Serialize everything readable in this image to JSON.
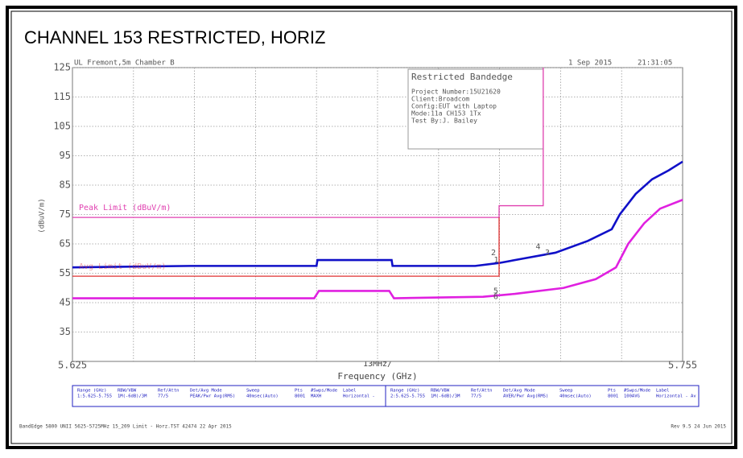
{
  "chart_data": {
    "type": "line",
    "title": "CHANNEL 153 RESTRICTED, HORIZ",
    "site": "UL Fremont,5m Chamber B",
    "date": "1 Sep 2015",
    "time": "21:31:05",
    "info_box": {
      "title": "Restricted Bandedge",
      "lines": [
        "Project Number:15U21620",
        "Client:Broadcom",
        "Config:EUT with Laptop",
        "Mode:11a CH153 1Tx",
        "Test By:J. Bailey"
      ]
    },
    "y_label": "(dBuV/m)",
    "x_label": "Frequency (GHz)",
    "x_division_label": "13MHz/",
    "xlim": [
      5.625,
      5.755
    ],
    "xticks": [
      5.625,
      5.755
    ],
    "ylim": [
      25,
      125
    ],
    "yticks": [
      35,
      45,
      55,
      65,
      75,
      85,
      95,
      105,
      115,
      125
    ],
    "grid": true,
    "series": [
      {
        "color": "#1010c8",
        "x": [
          5.625,
          5.65,
          5.677,
          5.6772,
          5.693,
          5.6932,
          5.7108,
          5.7159,
          5.721,
          5.7279,
          5.7348,
          5.7399,
          5.7416,
          5.745,
          5.7485,
          5.752,
          5.755
        ],
        "values": [
          57,
          57.5,
          57.5,
          59.5,
          59.5,
          57.5,
          57.5,
          58.5,
          60,
          62,
          66,
          70,
          75,
          82,
          87,
          90,
          93
        ]
      },
      {
        "color": "#e020e0",
        "x": [
          5.625,
          5.6765,
          5.6775,
          5.6925,
          5.6935,
          5.7125,
          5.7193,
          5.7296,
          5.7365,
          5.7408,
          5.7434,
          5.7468,
          5.7502,
          5.755
        ],
        "values": [
          46.5,
          46.5,
          49,
          49,
          46.5,
          47,
          48,
          50,
          53,
          57,
          65,
          72,
          77,
          80
        ]
      },
      {
        "name": "Peak Limit (dBuV/m)",
        "color": "#e040b0",
        "x": [
          5.625,
          5.7159,
          5.7159,
          5.7253,
          5.7253
        ],
        "values": [
          74,
          74,
          78,
          78,
          125
        ]
      },
      {
        "name": "Avg Limit (dBuV/m)",
        "color": "#e03030",
        "x": [
          5.625,
          5.7159,
          5.7159
        ],
        "values": [
          54,
          54,
          74
        ]
      }
    ],
    "markers": [
      {
        "label": "2",
        "x": 5.7147,
        "y": 62
      },
      {
        "label": "1",
        "x": 5.7153,
        "y": 59.5
      },
      {
        "label": "4",
        "x": 5.7242,
        "y": 64
      },
      {
        "label": "3",
        "x": 5.7262,
        "y": 62
      },
      {
        "label": "5",
        "x": 5.7152,
        "y": 49
      },
      {
        "label": "6",
        "x": 5.7152,
        "y": 47
      }
    ],
    "settings_table": {
      "headers": [
        "Range (GHz)",
        "RBW/VBW",
        "Ref/Attn",
        "Det/Avg Mode",
        "Sweep",
        "Pts",
        "#Swps/Mode",
        "Label"
      ],
      "rows": [
        [
          "1:5.625-5.755",
          "1M(-6dB)/3M",
          "77/5",
          "PEAK/Pwr Avg(RMS)",
          "40msec(Auto)",
          "8001",
          "MAXH",
          "Horizontal -"
        ],
        [
          "2:5.625-5.755",
          "1M(-6dB)/3M",
          "77/5",
          "AVER/Pwr Avg(RMS)",
          "40msec(Auto)",
          "8001",
          "100AVG",
          "Horizontal - Av"
        ]
      ]
    },
    "footer_left": "BandEdge 5800 UNII 5625-5725MHz 15_209 Limit - Horz.TST 42474 22 Apr 2015",
    "footer_right": "Rev 9.5 24 Jun 2015"
  }
}
